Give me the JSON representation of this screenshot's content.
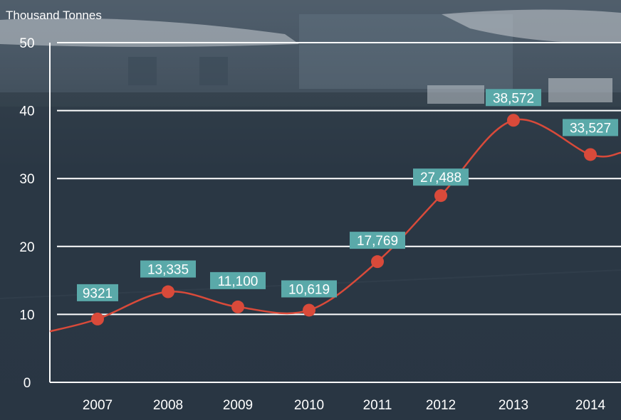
{
  "chart_data": {
    "type": "line",
    "unit_label": "Thousand Tonnes",
    "categories": [
      "2007",
      "2008",
      "2009",
      "2010",
      "2011",
      "2012",
      "2013",
      "2014"
    ],
    "values": [
      9.321,
      13.335,
      11.1,
      10.619,
      17.769,
      27.488,
      38.572,
      33.527
    ],
    "data_labels": [
      "9321",
      "13,335",
      "11,100",
      "10,619",
      "17,769",
      "27,488",
      "38,572",
      "33,527"
    ],
    "y_ticks": [
      "0",
      "10",
      "20",
      "30",
      "40",
      "50"
    ],
    "ylim": [
      0,
      50
    ],
    "grid": true,
    "colors": {
      "line": "#d94a3a",
      "marker": "#d94a3a",
      "label_bg": "#5aa9a9",
      "label_text": "#ffffff",
      "grid": "#ffffff",
      "axis_text": "#ffffff"
    }
  }
}
